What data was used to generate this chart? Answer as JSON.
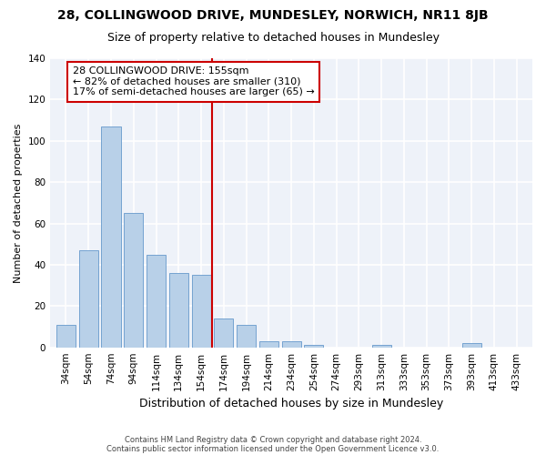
{
  "title": "28, COLLINGWOOD DRIVE, MUNDESLEY, NORWICH, NR11 8JB",
  "subtitle": "Size of property relative to detached houses in Mundesley",
  "xlabel": "Distribution of detached houses by size in Mundesley",
  "ylabel": "Number of detached properties",
  "footnote1": "Contains HM Land Registry data © Crown copyright and database right 2024.",
  "footnote2": "Contains public sector information licensed under the Open Government Licence v3.0.",
  "categories": [
    "34sqm",
    "54sqm",
    "74sqm",
    "94sqm",
    "114sqm",
    "134sqm",
    "154sqm",
    "174sqm",
    "194sqm",
    "214sqm",
    "234sqm",
    "254sqm",
    "274sqm",
    "293sqm",
    "313sqm",
    "333sqm",
    "353sqm",
    "373sqm",
    "393sqm",
    "413sqm",
    "433sqm"
  ],
  "values": [
    11,
    47,
    107,
    65,
    45,
    36,
    35,
    14,
    11,
    3,
    3,
    1,
    0,
    0,
    1,
    0,
    0,
    0,
    2,
    0,
    0
  ],
  "bar_color": "#b8d0e8",
  "bar_edge_color": "#6699cc",
  "property_line_color": "#cc0000",
  "annotation_text": "28 COLLINGWOOD DRIVE: 155sqm\n← 82% of detached houses are smaller (310)\n17% of semi-detached houses are larger (65) →",
  "annotation_box_color": "#ffffff",
  "annotation_box_edge_color": "#cc0000",
  "ylim": [
    0,
    140
  ],
  "yticks": [
    0,
    20,
    40,
    60,
    80,
    100,
    120,
    140
  ],
  "background_color": "#eef2f9",
  "grid_color": "#ffffff",
  "title_fontsize": 10,
  "subtitle_fontsize": 9,
  "xlabel_fontsize": 9,
  "ylabel_fontsize": 8,
  "tick_fontsize": 7.5,
  "annotation_fontsize": 8,
  "footnote_fontsize": 6
}
